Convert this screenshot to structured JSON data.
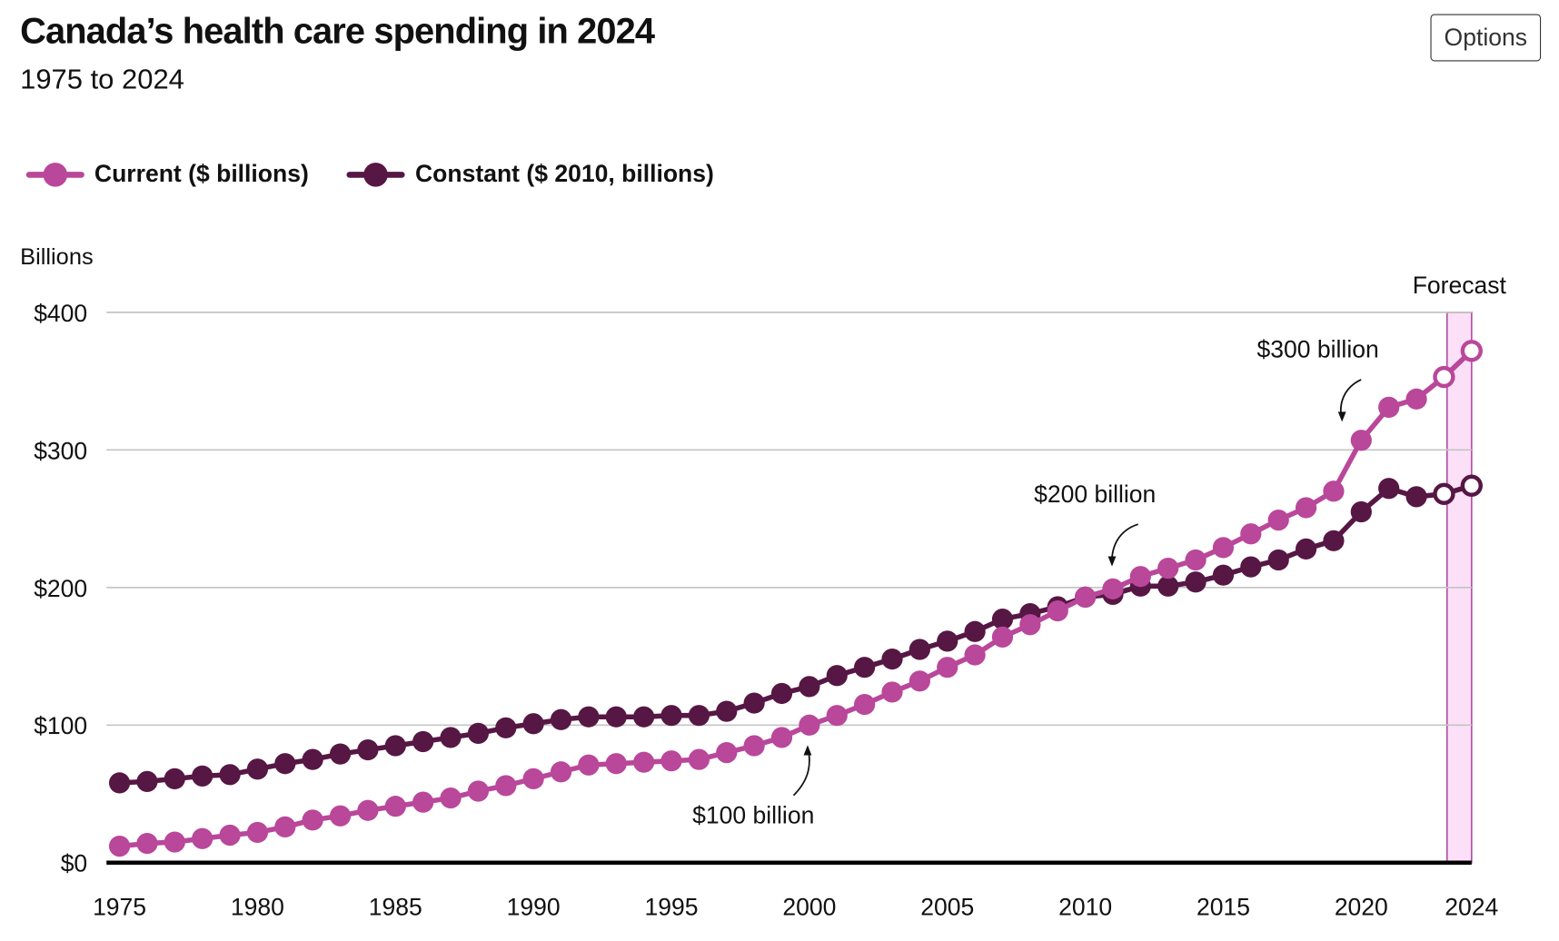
{
  "header": {
    "title": "Canada’s health care spending in 2024",
    "subtitle": "1975 to 2024",
    "options_label": "Options"
  },
  "colors": {
    "current": "#b9479a",
    "constant": "#561744",
    "forecast_fill": "#fbe0f7",
    "forecast_border": "#b34fa3",
    "grid": "#c4c4c4"
  },
  "chart_data": {
    "type": "line",
    "title": "Canada’s health care spending in 2024",
    "subtitle": "1975 to 2024",
    "ylabel": "Billions",
    "xlabel": "",
    "ylim": [
      0,
      400
    ],
    "xlim": [
      1975,
      2024
    ],
    "grid": true,
    "legend_position": "top-left",
    "y_ticks": [
      "$0",
      "$100",
      "$200",
      "$300",
      "$400"
    ],
    "y_tick_values": [
      0,
      100,
      200,
      300,
      400
    ],
    "x_ticks": [
      "1975",
      "1980",
      "1985",
      "1990",
      "1995",
      "2000",
      "2005",
      "2010",
      "2015",
      "2020",
      "2024"
    ],
    "x_tick_values": [
      1975,
      1980,
      1985,
      1990,
      1995,
      2000,
      2005,
      2010,
      2015,
      2020,
      2024
    ],
    "forecast": {
      "label": "Forecast",
      "years": [
        2023,
        2024
      ]
    },
    "x": [
      1975,
      1976,
      1977,
      1978,
      1979,
      1980,
      1981,
      1982,
      1983,
      1984,
      1985,
      1986,
      1987,
      1988,
      1989,
      1990,
      1991,
      1992,
      1993,
      1994,
      1995,
      1996,
      1997,
      1998,
      1999,
      2000,
      2001,
      2002,
      2003,
      2004,
      2005,
      2006,
      2007,
      2008,
      2009,
      2010,
      2011,
      2012,
      2013,
      2014,
      2015,
      2016,
      2017,
      2018,
      2019,
      2020,
      2021,
      2022,
      2023,
      2024
    ],
    "series": [
      {
        "name": "Current ($ billions)",
        "values": [
          12,
          14,
          15,
          17.5,
          20,
          22,
          26,
          31,
          34,
          38,
          41,
          44,
          47,
          52,
          56,
          61,
          66,
          71,
          72,
          73,
          74,
          75,
          80,
          85,
          91,
          100,
          107,
          115,
          124,
          132,
          142,
          151,
          164,
          173,
          183,
          193,
          199,
          208,
          214,
          220,
          229,
          239,
          249,
          258,
          270,
          307,
          331,
          337,
          353,
          372
        ]
      },
      {
        "name": "Constant ($ 2010, billions)",
        "values": [
          58,
          59,
          61,
          63,
          64,
          68,
          72,
          75,
          79,
          82,
          85,
          88,
          91,
          94,
          98,
          101,
          104,
          106,
          106,
          106,
          107,
          107,
          110,
          116,
          123,
          128,
          136,
          142,
          148,
          155,
          161,
          168,
          177,
          181,
          186,
          193,
          195,
          201,
          201,
          204,
          209,
          215,
          220,
          228,
          234,
          255,
          272,
          266,
          268,
          274
        ]
      }
    ],
    "annotations": [
      {
        "text": "$100 billion",
        "year": 2000,
        "value": 100
      },
      {
        "text": "$200 billion",
        "year": 2011,
        "value": 200
      },
      {
        "text": "$300 billion",
        "year": 2020,
        "value": 300
      }
    ]
  }
}
